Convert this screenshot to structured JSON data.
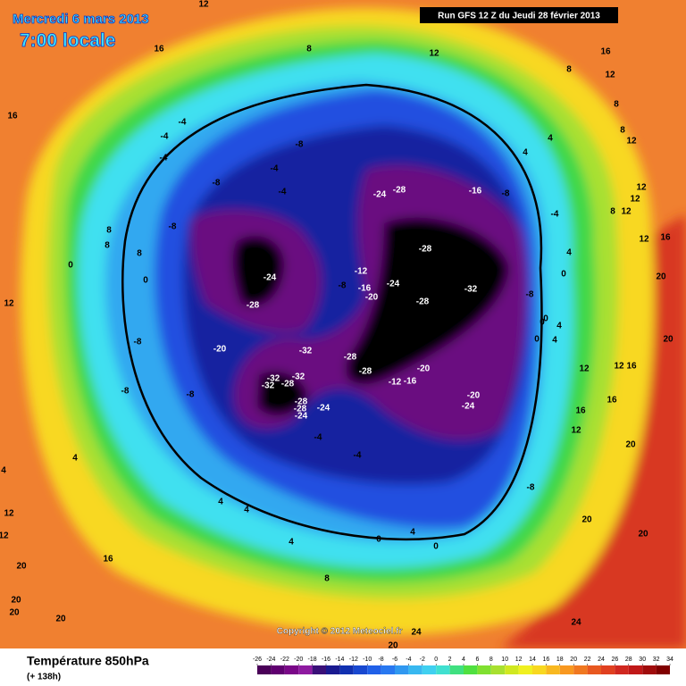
{
  "header": {
    "date": "Mercredi 6 mars 2013",
    "time": "7:00 locale",
    "run": "Run GFS 12 Z du Jeudi 28 février 2013"
  },
  "copyright": "Copyright © 2012 Meteociel.fr",
  "footer": {
    "title": "Température 850hPa",
    "lead": "(+ 138h)"
  },
  "colorbar": {
    "ticks": [
      -26,
      -24,
      -22,
      -20,
      -18,
      -16,
      -14,
      -12,
      -10,
      -8,
      -6,
      -4,
      -2,
      0,
      2,
      4,
      6,
      8,
      10,
      12,
      14,
      16,
      18,
      20,
      22,
      24,
      26,
      28,
      30,
      32,
      34
    ],
    "colors": [
      "#4a0058",
      "#600070",
      "#7a0888",
      "#8e1aa0",
      "#3a1078",
      "#1a1a90",
      "#1030b0",
      "#1848d0",
      "#2060e8",
      "#2878f0",
      "#3098f0",
      "#38b8f0",
      "#40d0f0",
      "#40e0d0",
      "#40e080",
      "#50e040",
      "#80e030",
      "#a8e030",
      "#d0e820",
      "#f0f020",
      "#f8d820",
      "#f8b820",
      "#f89820",
      "#f07820",
      "#e85820",
      "#e04020",
      "#d02820",
      "#c01818",
      "#a00c0c",
      "#800000"
    ]
  },
  "map_labels": [
    "12",
    "16",
    "16",
    "8",
    "12",
    "16",
    "12",
    "8",
    "8",
    "12",
    "8",
    "12",
    "12",
    "8",
    "12",
    "16",
    "20",
    "20",
    "12",
    "16",
    "12",
    "16",
    "16",
    "12",
    "20",
    "20",
    "20",
    "24",
    "20",
    "24",
    "20",
    "20",
    "20",
    "20",
    "16",
    "12",
    "12",
    "4",
    "4",
    "4",
    "4",
    "4",
    "8",
    "4",
    "0",
    "0",
    "-4",
    "-4",
    "-8",
    "-8",
    "-8",
    "-8",
    "-12",
    "-16",
    "-20",
    "-20",
    "-24",
    "-24",
    "-24",
    "-28",
    "-28",
    "-32",
    "-32",
    "-28",
    "-32",
    "-28",
    "-28",
    "-32",
    "-20",
    "-28",
    "-24",
    "-8",
    "-12",
    "-16",
    "-20",
    "-24",
    "-28",
    "-32",
    "-28",
    "-28",
    "-24",
    "-16",
    "-8",
    "-8",
    "-4",
    "-4",
    "-4",
    "-4",
    "-4",
    "-8",
    "-8",
    "8",
    "8",
    "0",
    "0",
    "8",
    "12",
    "-4",
    "4",
    "4",
    "4",
    "0",
    "0",
    "4",
    "0",
    "0",
    "-8",
    "4",
    "12"
  ]
}
